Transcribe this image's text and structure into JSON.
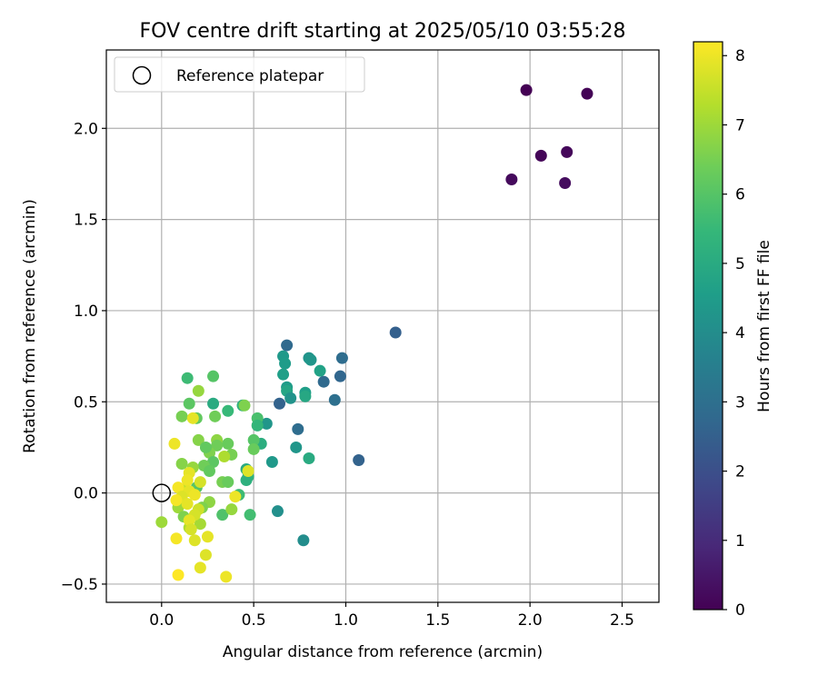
{
  "chart_data": {
    "type": "scatter",
    "title": "FOV centre drift starting at 2025/05/10 03:55:28",
    "xlabel": "Angular distance from reference (arcmin)",
    "ylabel": "Rotation from reference (arcmin)",
    "xlim": [
      -0.3,
      2.7
    ],
    "ylim": [
      -0.6,
      2.43
    ],
    "x_ticks": [
      0.0,
      0.5,
      1.0,
      1.5,
      2.0,
      2.5
    ],
    "x_tick_labels": [
      "0.0",
      "0.5",
      "1.0",
      "1.5",
      "2.0",
      "2.5"
    ],
    "y_ticks": [
      -0.5,
      0.0,
      0.5,
      1.0,
      1.5,
      2.0
    ],
    "y_tick_labels": [
      "−0.5",
      "0.0",
      "0.5",
      "1.0",
      "1.5",
      "2.0"
    ],
    "grid": true,
    "legend": {
      "position": "top-left",
      "entries": [
        {
          "label": "Reference platepar",
          "marker": "open-circle"
        }
      ]
    },
    "reference_point": {
      "x": 0.0,
      "y": 0.0,
      "label": "Reference platepar"
    },
    "colorbar": {
      "label": "Hours from first FF file",
      "colormap": "viridis",
      "range": [
        0,
        8.2
      ],
      "ticks": [
        0,
        1,
        2,
        3,
        4,
        5,
        6,
        7,
        8
      ],
      "tick_labels": [
        "0",
        "1",
        "2",
        "3",
        "4",
        "5",
        "6",
        "7",
        "8"
      ]
    },
    "points": [
      {
        "x": 1.98,
        "y": 2.21,
        "c": 0.0
      },
      {
        "x": 2.31,
        "y": 2.19,
        "c": 0.05
      },
      {
        "x": 2.06,
        "y": 1.85,
        "c": 0.1
      },
      {
        "x": 2.2,
        "y": 1.87,
        "c": 0.15
      },
      {
        "x": 1.9,
        "y": 1.72,
        "c": 0.2
      },
      {
        "x": 2.19,
        "y": 1.7,
        "c": 0.25
      },
      {
        "x": 1.27,
        "y": 0.88,
        "c": 2.5
      },
      {
        "x": 0.68,
        "y": 0.81,
        "c": 2.8
      },
      {
        "x": 0.98,
        "y": 0.74,
        "c": 2.9
      },
      {
        "x": 0.97,
        "y": 0.64,
        "c": 2.7
      },
      {
        "x": 0.88,
        "y": 0.61,
        "c": 2.8
      },
      {
        "x": 0.94,
        "y": 0.51,
        "c": 3.0
      },
      {
        "x": 0.64,
        "y": 0.49,
        "c": 2.6
      },
      {
        "x": 0.74,
        "y": 0.35,
        "c": 2.9
      },
      {
        "x": 1.07,
        "y": 0.18,
        "c": 2.6
      },
      {
        "x": 0.8,
        "y": 0.74,
        "c": 4.2
      },
      {
        "x": 0.81,
        "y": 0.73,
        "c": 4.3
      },
      {
        "x": 0.66,
        "y": 0.75,
        "c": 4.4
      },
      {
        "x": 0.67,
        "y": 0.71,
        "c": 4.5
      },
      {
        "x": 0.66,
        "y": 0.65,
        "c": 4.6
      },
      {
        "x": 0.86,
        "y": 0.67,
        "c": 4.7
      },
      {
        "x": 0.68,
        "y": 0.58,
        "c": 4.5
      },
      {
        "x": 0.68,
        "y": 0.56,
        "c": 4.8
      },
      {
        "x": 0.78,
        "y": 0.55,
        "c": 4.6
      },
      {
        "x": 0.78,
        "y": 0.53,
        "c": 4.9
      },
      {
        "x": 0.7,
        "y": 0.52,
        "c": 4.2
      },
      {
        "x": 0.73,
        "y": 0.25,
        "c": 4.3
      },
      {
        "x": 0.8,
        "y": 0.19,
        "c": 5.0
      },
      {
        "x": 0.6,
        "y": 0.17,
        "c": 4.4
      },
      {
        "x": 0.63,
        "y": -0.1,
        "c": 4.1
      },
      {
        "x": 0.77,
        "y": -0.26,
        "c": 4.0
      },
      {
        "x": 0.57,
        "y": 0.38,
        "c": 4.3
      },
      {
        "x": 0.28,
        "y": 0.49,
        "c": 5.0
      },
      {
        "x": 0.44,
        "y": 0.48,
        "c": 5.2
      },
      {
        "x": 0.36,
        "y": 0.45,
        "c": 5.5
      },
      {
        "x": 0.52,
        "y": 0.41,
        "c": 5.8
      },
      {
        "x": 0.52,
        "y": 0.37,
        "c": 5.4
      },
      {
        "x": 0.54,
        "y": 0.27,
        "c": 5.1
      },
      {
        "x": 0.46,
        "y": 0.13,
        "c": 5.0
      },
      {
        "x": 0.47,
        "y": 0.09,
        "c": 5.3
      },
      {
        "x": 0.46,
        "y": 0.07,
        "c": 5.2
      },
      {
        "x": 0.42,
        "y": -0.01,
        "c": 5.6
      },
      {
        "x": 0.48,
        "y": -0.12,
        "c": 5.7
      },
      {
        "x": 0.33,
        "y": -0.12,
        "c": 5.9
      },
      {
        "x": 0.14,
        "y": 0.63,
        "c": 5.6
      },
      {
        "x": 0.28,
        "y": 0.64,
        "c": 6.0
      },
      {
        "x": 0.15,
        "y": 0.49,
        "c": 6.1
      },
      {
        "x": 0.45,
        "y": 0.48,
        "c": 6.6
      },
      {
        "x": 0.19,
        "y": 0.41,
        "c": 6.2
      },
      {
        "x": 0.29,
        "y": 0.42,
        "c": 6.4
      },
      {
        "x": 0.11,
        "y": 0.42,
        "c": 6.5
      },
      {
        "x": 0.2,
        "y": 0.56,
        "c": 6.9
      },
      {
        "x": 0.36,
        "y": 0.27,
        "c": 6.3
      },
      {
        "x": 0.3,
        "y": 0.29,
        "c": 6.8
      },
      {
        "x": 0.3,
        "y": 0.26,
        "c": 6.4
      },
      {
        "x": 0.2,
        "y": 0.29,
        "c": 6.7
      },
      {
        "x": 0.26,
        "y": 0.22,
        "c": 6.6
      },
      {
        "x": 0.24,
        "y": 0.25,
        "c": 6.2
      },
      {
        "x": 0.38,
        "y": 0.21,
        "c": 6.5
      },
      {
        "x": 0.34,
        "y": 0.2,
        "c": 7.2
      },
      {
        "x": 0.5,
        "y": 0.29,
        "c": 6.0
      },
      {
        "x": 0.5,
        "y": 0.24,
        "c": 6.3
      },
      {
        "x": 0.28,
        "y": 0.17,
        "c": 6.1
      },
      {
        "x": 0.23,
        "y": 0.15,
        "c": 6.4
      },
      {
        "x": 0.11,
        "y": 0.16,
        "c": 6.7
      },
      {
        "x": 0.17,
        "y": 0.14,
        "c": 6.9
      },
      {
        "x": 0.26,
        "y": 0.12,
        "c": 6.2
      },
      {
        "x": 0.33,
        "y": 0.06,
        "c": 6.5
      },
      {
        "x": 0.36,
        "y": 0.06,
        "c": 6.3
      },
      {
        "x": 0.19,
        "y": 0.03,
        "c": 6.0
      },
      {
        "x": 0.26,
        "y": -0.05,
        "c": 6.8
      },
      {
        "x": 0.09,
        "y": -0.08,
        "c": 7.0
      },
      {
        "x": 0.12,
        "y": -0.13,
        "c": 6.6
      },
      {
        "x": 0.38,
        "y": -0.09,
        "c": 6.9
      },
      {
        "x": 0.0,
        "y": -0.16,
        "c": 7.0
      },
      {
        "x": 0.21,
        "y": -0.17,
        "c": 7.1
      },
      {
        "x": 0.15,
        "y": -0.19,
        "c": 7.2
      },
      {
        "x": 0.22,
        "y": -0.08,
        "c": 6.6
      },
      {
        "x": 0.12,
        "y": 0.02,
        "c": 7.4
      },
      {
        "x": 0.07,
        "y": 0.27,
        "c": 8.0
      },
      {
        "x": 0.17,
        "y": 0.41,
        "c": 7.9
      },
      {
        "x": 0.47,
        "y": 0.12,
        "c": 7.8
      },
      {
        "x": 0.15,
        "y": 0.11,
        "c": 7.9
      },
      {
        "x": 0.14,
        "y": 0.07,
        "c": 8.0
      },
      {
        "x": 0.21,
        "y": 0.06,
        "c": 7.7
      },
      {
        "x": 0.09,
        "y": 0.03,
        "c": 8.1
      },
      {
        "x": 0.15,
        "y": 0.01,
        "c": 7.9
      },
      {
        "x": 0.18,
        "y": -0.01,
        "c": 8.0
      },
      {
        "x": 0.11,
        "y": -0.02,
        "c": 7.8
      },
      {
        "x": 0.08,
        "y": -0.04,
        "c": 8.1
      },
      {
        "x": 0.14,
        "y": -0.06,
        "c": 7.9
      },
      {
        "x": 0.2,
        "y": -0.09,
        "c": 7.6
      },
      {
        "x": 0.18,
        "y": -0.12,
        "c": 7.7
      },
      {
        "x": 0.4,
        "y": -0.02,
        "c": 8.0
      },
      {
        "x": 0.15,
        "y": -0.15,
        "c": 7.9
      },
      {
        "x": 0.16,
        "y": -0.2,
        "c": 7.7
      },
      {
        "x": 0.08,
        "y": -0.25,
        "c": 8.1
      },
      {
        "x": 0.25,
        "y": -0.24,
        "c": 7.9
      },
      {
        "x": 0.18,
        "y": -0.26,
        "c": 7.8
      },
      {
        "x": 0.24,
        "y": -0.34,
        "c": 7.8
      },
      {
        "x": 0.21,
        "y": -0.41,
        "c": 7.9
      },
      {
        "x": 0.09,
        "y": -0.45,
        "c": 8.2
      },
      {
        "x": 0.35,
        "y": -0.46,
        "c": 8.0
      }
    ]
  }
}
